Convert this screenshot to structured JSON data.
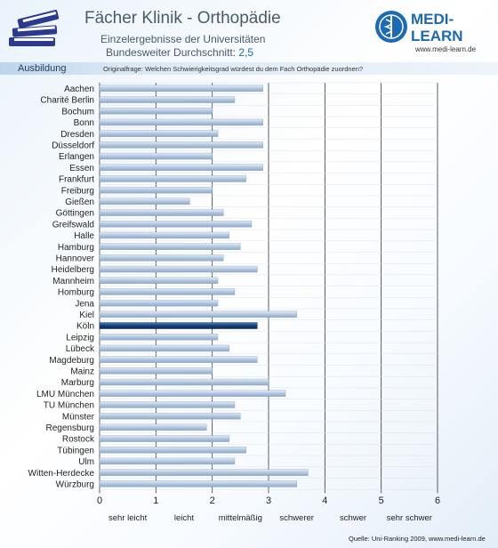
{
  "header": {
    "title": "Fächer Klinik - Orthopädie",
    "subtitle_line1": "Einzelergebnisse der Universitäten",
    "subtitle_line2_prefix": "Bundesweiter Durchschnitt: ",
    "subtitle_line2_value": "2,5",
    "logo_line1": "MEDI-",
    "logo_line2": "LEARN",
    "website": "www.medi-learn.de"
  },
  "section_label": "Ausbildung",
  "question": "Originalfrage: Welchen Schwierigkeitsgrad würdest du dem Fach Orthopädie zuordnen?",
  "footer": {
    "source": "Quelle: Uni-Ranking 2009, www.medi-learn.de"
  },
  "colors": {
    "bar": "#aec3dc",
    "bar_highlight": "#163f7a",
    "grid": "#333333",
    "accent": "#1c6ab3"
  },
  "chart_data": {
    "type": "bar",
    "orientation": "horizontal",
    "categories": [
      "Aachen",
      "Charité Berlin",
      "Bochum",
      "Bonn",
      "Dresden",
      "Düsseldorf",
      "Erlangen",
      "Essen",
      "Frankfurt",
      "Freiburg",
      "Gießen",
      "Göttingen",
      "Greifswald",
      "Halle",
      "Hamburg",
      "Hannover",
      "Heidelberg",
      "Mannheim",
      "Homburg",
      "Jena",
      "Kiel",
      "Köln",
      "Leipzig",
      "Lübeck",
      "Magdeburg",
      "Mainz",
      "Marburg",
      "LMU München",
      "TU München",
      "Münster",
      "Regensburg",
      "Rostock",
      "Tübingen",
      "Ulm",
      "Witten-Herdecke",
      "Würzburg"
    ],
    "values": [
      2.9,
      2.4,
      2.0,
      2.9,
      2.1,
      2.9,
      2.0,
      2.9,
      2.6,
      2.0,
      1.6,
      2.2,
      2.7,
      2.3,
      2.5,
      2.2,
      2.8,
      2.1,
      2.4,
      2.1,
      3.5,
      2.8,
      2.1,
      2.3,
      2.8,
      2.0,
      3.0,
      3.3,
      2.4,
      2.5,
      1.9,
      2.3,
      2.6,
      2.4,
      3.7,
      3.5
    ],
    "highlight": "Köln",
    "xlim": [
      0,
      6
    ],
    "xticks": [
      "0",
      "1",
      "2",
      "3",
      "4",
      "5",
      "6"
    ],
    "scale_labels": [
      "sehr leicht",
      "leicht",
      "mittelmäßig",
      "schwerer",
      "schwer",
      "sehr schwer"
    ],
    "grid": true
  }
}
